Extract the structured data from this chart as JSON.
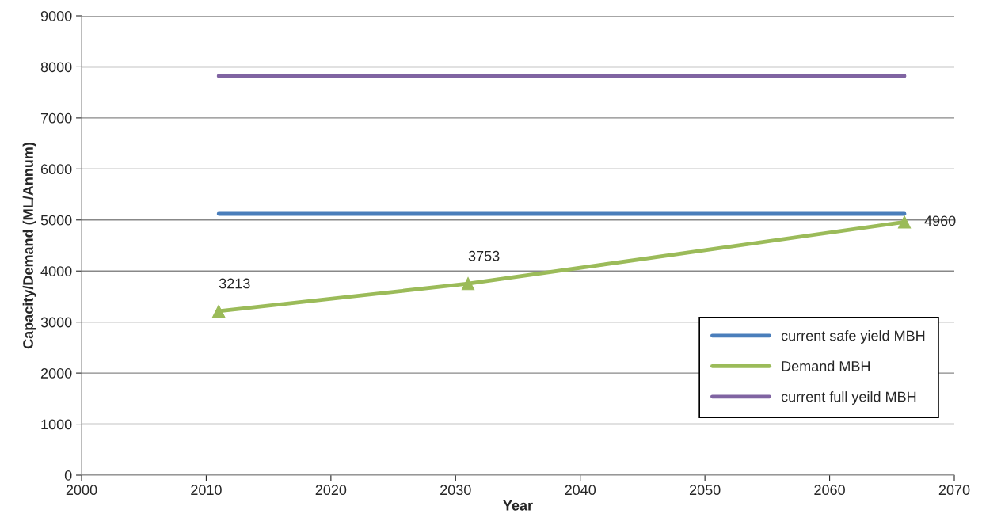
{
  "chart_data": {
    "type": "line",
    "xlabel": "Year",
    "ylabel": "Capacity/Demand (ML/Annum)",
    "xlim": [
      2000,
      2070
    ],
    "xticks": [
      2000,
      2010,
      2020,
      2030,
      2040,
      2050,
      2060,
      2070
    ],
    "ylim": [
      0,
      9000
    ],
    "yticks": [
      0,
      1000,
      2000,
      3000,
      4000,
      5000,
      6000,
      7000,
      8000,
      9000
    ],
    "grid": "y",
    "legend": "bottom right",
    "series": [
      {
        "name": "current safe yield MBH",
        "color": "#4a7ebb",
        "x": [
          2011,
          2066
        ],
        "values": [
          5120,
          5120
        ],
        "marker": "none"
      },
      {
        "name": "Demand MBH",
        "color": "#9bbb59",
        "x": [
          2011,
          2031,
          2066
        ],
        "values": [
          3213,
          3753,
          4960
        ],
        "marker": "triangle",
        "value_labels": [
          "3213",
          "3753",
          "4960"
        ]
      },
      {
        "name": "current full yeild MBH",
        "color": "#8064a2",
        "x": [
          2011,
          2066
        ],
        "values": [
          7820,
          7820
        ],
        "marker": "none"
      }
    ]
  }
}
